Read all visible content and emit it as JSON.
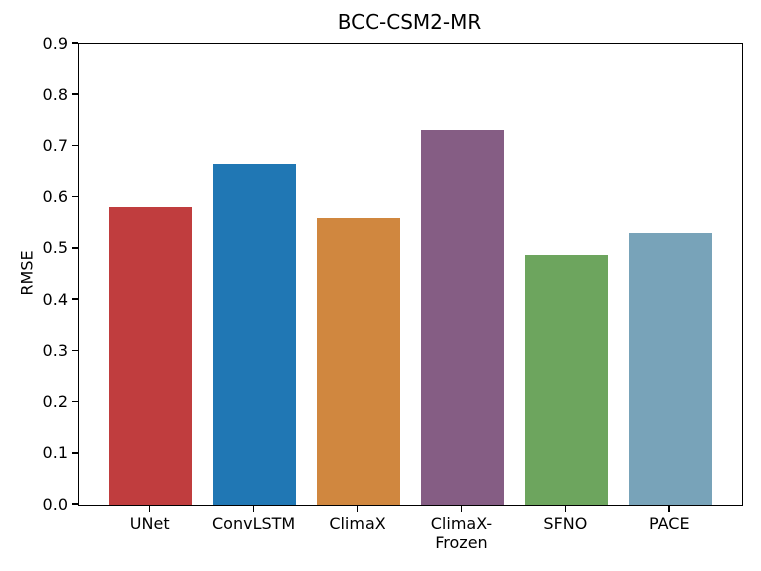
{
  "chart_data": {
    "type": "bar",
    "title": "BCC-CSM2-MR",
    "ylabel": "RMSE",
    "xlabel": "",
    "categories": [
      "UNet",
      "ConvLSTM",
      "ClimaX",
      "ClimaX-\nFrozen",
      "SFNO",
      "PACE"
    ],
    "values": [
      0.581,
      0.665,
      0.56,
      0.733,
      0.488,
      0.531
    ],
    "bar_colors": [
      "#c03d3e",
      "#2077b4",
      "#d0873f",
      "#855d84",
      "#6da55e",
      "#78a3b9"
    ],
    "ylim": [
      0.0,
      0.9
    ],
    "yticks": [
      0.0,
      0.1,
      0.2,
      0.3,
      0.4,
      0.5,
      0.6,
      0.7,
      0.8,
      0.9
    ],
    "ytick_label_format_decimals": 1,
    "bar_width_fraction": 0.8,
    "grid": false,
    "legend": "none",
    "spine_color": "#000000",
    "background_color": "#ffffff"
  }
}
